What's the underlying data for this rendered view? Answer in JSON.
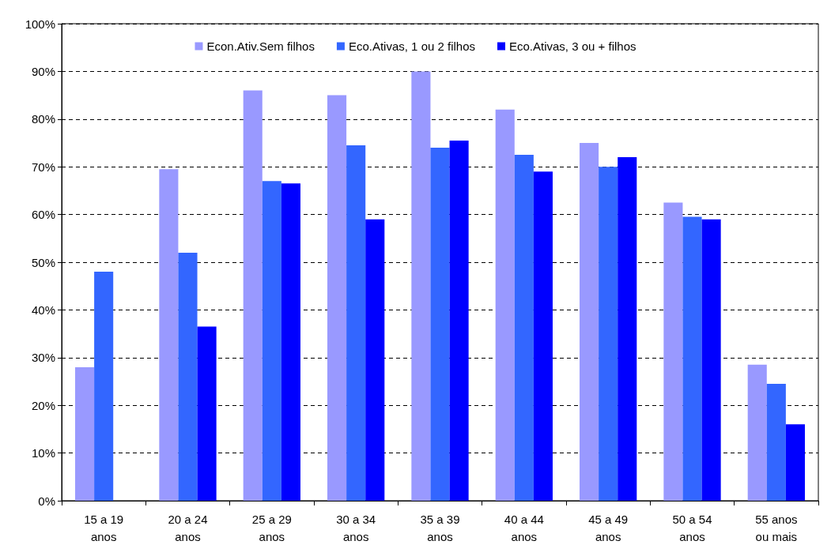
{
  "chart_data": {
    "type": "bar",
    "categories": [
      "15 a 19\nanos",
      "20 a 24\nanos",
      "25 a 29\nanos",
      "30 a 34\nanos",
      "35 a 39\nanos",
      "40 a 44\nanos",
      "45 a 49\nanos",
      "50 a 54\nanos",
      "55 anos\nou mais"
    ],
    "series": [
      {
        "name": "Econ.Ativ.Sem filhos",
        "color": "#9999ff",
        "values": [
          28,
          69.5,
          86,
          85,
          90,
          82,
          75,
          62.5,
          28.5
        ]
      },
      {
        "name": "Eco.Ativas, 1 ou 2 filhos",
        "color": "#3366ff",
        "values": [
          48,
          52,
          67,
          74.5,
          74,
          72.5,
          70,
          59.5,
          24.5
        ]
      },
      {
        "name": "Eco.Ativas, 3 ou + filhos",
        "color": "#0000ff",
        "values": [
          null,
          36.5,
          66.5,
          59,
          75.5,
          69,
          72,
          59,
          16
        ]
      }
    ],
    "ylim": [
      0,
      100
    ],
    "yticks": [
      {
        "value": 0,
        "label": "0%"
      },
      {
        "value": 10,
        "label": "10%"
      },
      {
        "value": 20,
        "label": "20%"
      },
      {
        "value": 30,
        "label": "30%"
      },
      {
        "value": 40,
        "label": "40%"
      },
      {
        "value": 50,
        "label": "50%"
      },
      {
        "value": 60,
        "label": "60%"
      },
      {
        "value": 70,
        "label": "70%"
      },
      {
        "value": 80,
        "label": "80%"
      },
      {
        "value": 90,
        "label": "90%"
      },
      {
        "value": 100,
        "label": "100%"
      }
    ],
    "grid": "y",
    "legend": "top"
  }
}
